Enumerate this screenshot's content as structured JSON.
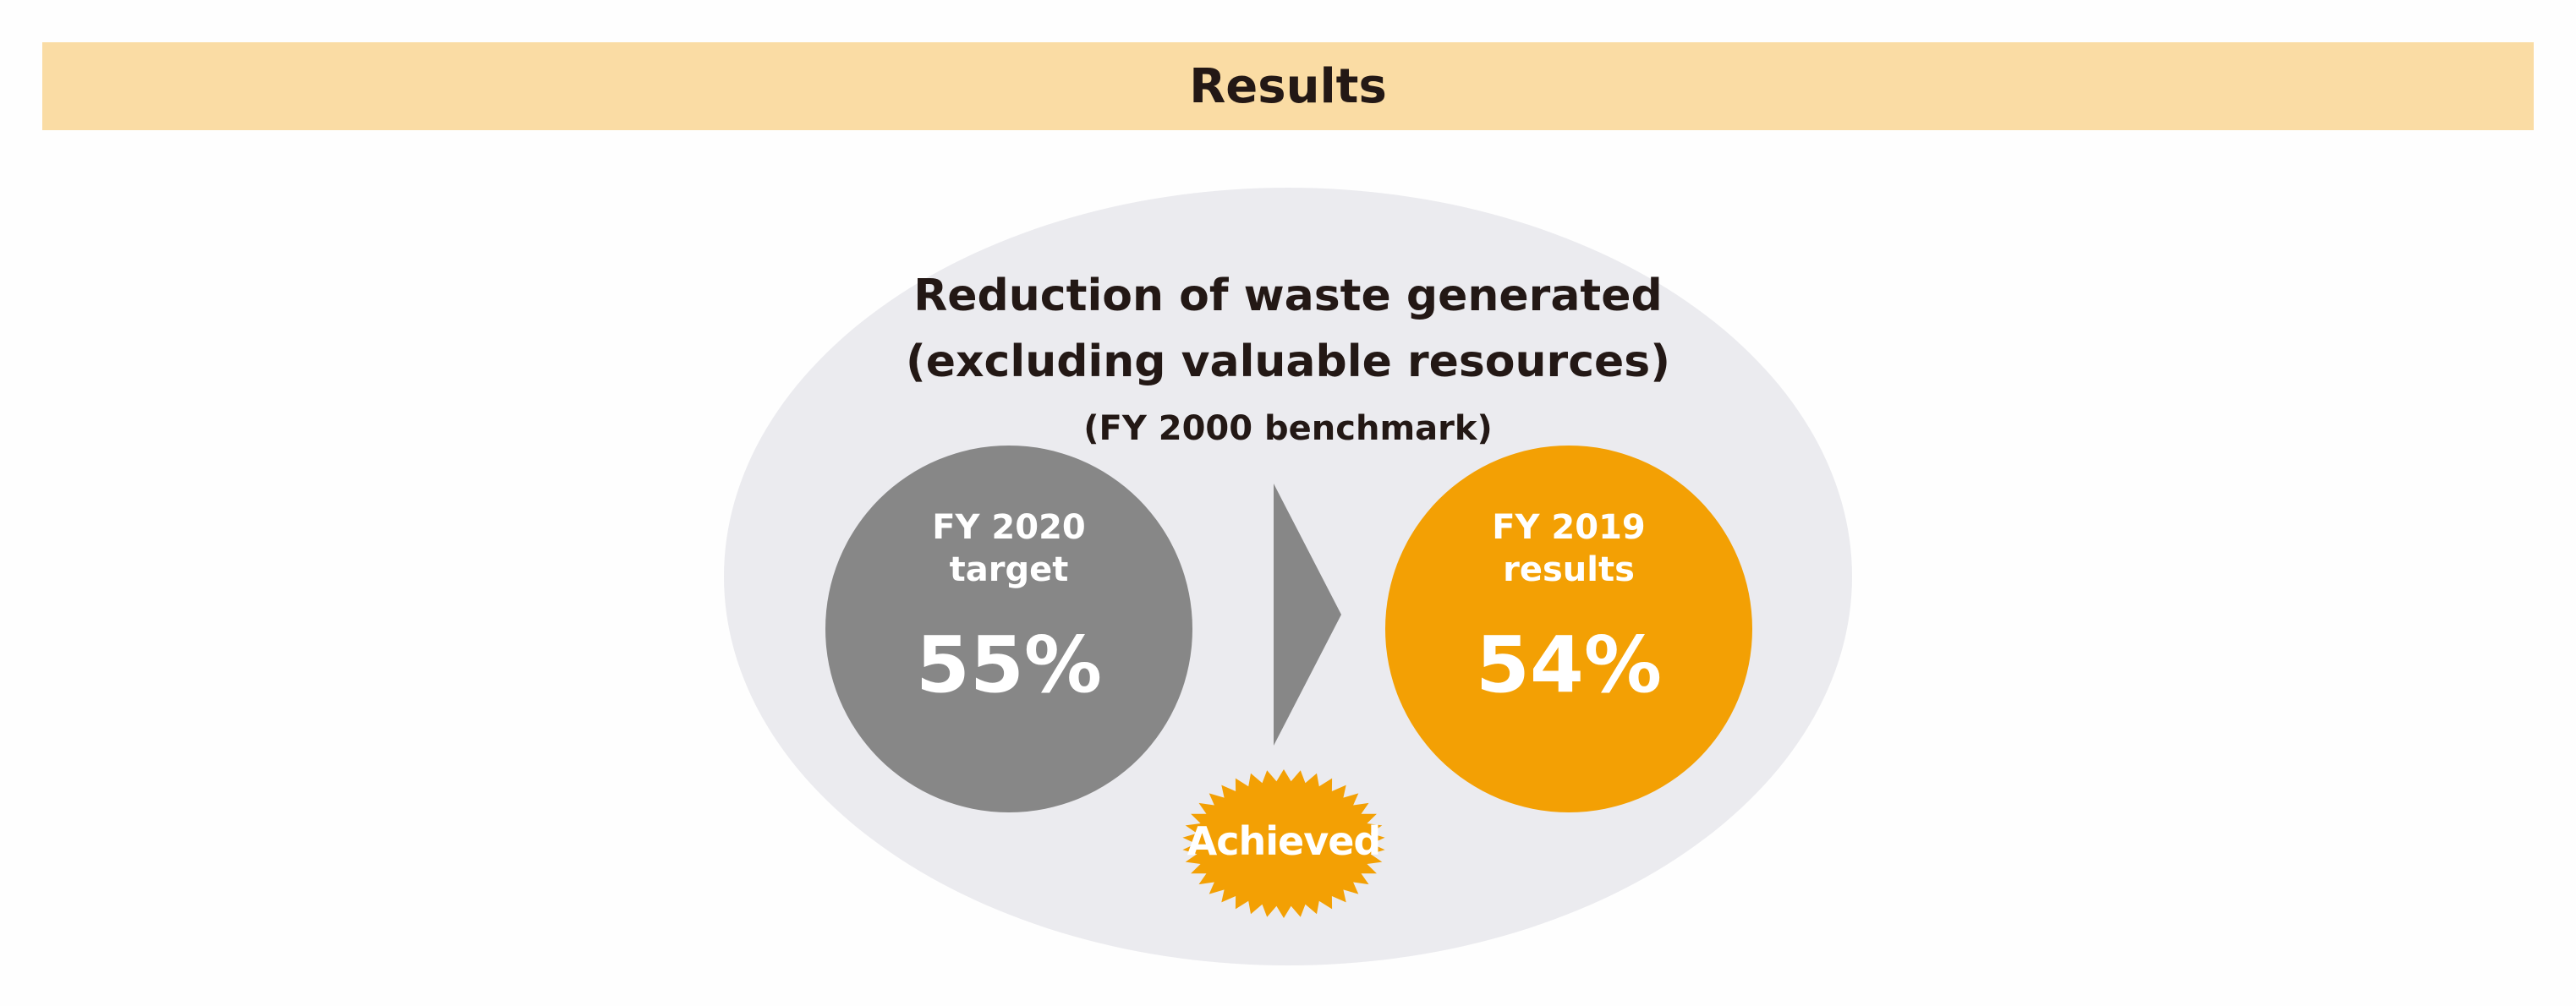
{
  "banner": {
    "title": "Results",
    "color": "#fadca4"
  },
  "diagram": {
    "heading_line1": "Reduction of waste generated",
    "heading_line2": "(excluding valuable resources)",
    "heading_line3": "(FY 2000 benchmark)",
    "target": {
      "label_line1": "FY 2020",
      "label_line2": "target",
      "value": "55%",
      "color": "#878787"
    },
    "results": {
      "label_line1": "FY 2019",
      "label_line2": "results",
      "value": "54%",
      "color": "#f3a004"
    },
    "badge": {
      "label": "Achieved",
      "color": "#f3a004"
    },
    "background_color": "#ebebef"
  }
}
